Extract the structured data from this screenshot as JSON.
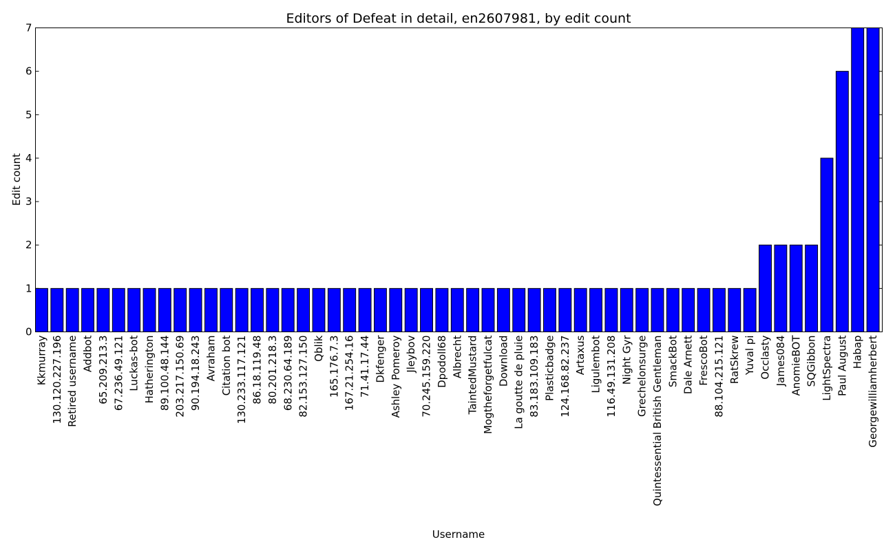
{
  "chart_data": {
    "type": "bar",
    "title": "Editors of Defeat in detail, en2607981, by edit count",
    "xlabel": "Username",
    "ylabel": "Edit count",
    "ylim": [
      0,
      7
    ],
    "yticks": [
      "0",
      "1",
      "2",
      "3",
      "4",
      "5",
      "6",
      "7"
    ],
    "grid": false,
    "bar_color": "#0000ff",
    "categories": [
      "Kkmurray",
      "130.120.227.196",
      "Retired username",
      "Addbot",
      "65.209.213.3",
      "67.236.49.121",
      "Luckas-bot",
      "Hatherington",
      "89.100.48.144",
      "203.217.150.69",
      "90.194.18.243",
      "Avraham",
      "Citation bot",
      "130.233.117.121",
      "86.18.119.48",
      "80.201.218.3",
      "68.230.64.189",
      "82.153.127.150",
      "Qblik",
      "165.176.7.3",
      "167.21.254.16",
      "71.41.17.44",
      "Dkfenger",
      "Ashley Pomeroy",
      "Jleybov",
      "70.245.159.220",
      "Dpodoll68",
      "Albrecht",
      "TaintedMustard",
      "Mogtheforgetfulcat",
      "Download",
      "La goutte de pluie",
      "83.183.109.183",
      "Plasticbadge",
      "124.168.82.237",
      "Artaxus",
      "Ligulembot",
      "116.49.131.208",
      "Night Gyr",
      "Grechelonsurge",
      "Quintessential British Gentleman",
      "SmackBot",
      "Dale Arnett",
      "FrescoBot",
      "88.104.215.121",
      "RatSkrew",
      "Yuval pi",
      "Occlasty",
      "James084",
      "AnomieBOT",
      "SQGibbon",
      "LightSpectra",
      "Paul August",
      "Habap",
      "Georgewilliamherbert"
    ],
    "values": [
      1,
      1,
      1,
      1,
      1,
      1,
      1,
      1,
      1,
      1,
      1,
      1,
      1,
      1,
      1,
      1,
      1,
      1,
      1,
      1,
      1,
      1,
      1,
      1,
      1,
      1,
      1,
      1,
      1,
      1,
      1,
      1,
      1,
      1,
      1,
      1,
      1,
      1,
      1,
      1,
      1,
      1,
      1,
      1,
      1,
      1,
      1,
      2,
      2,
      2,
      2,
      4,
      6,
      7,
      7
    ]
  }
}
